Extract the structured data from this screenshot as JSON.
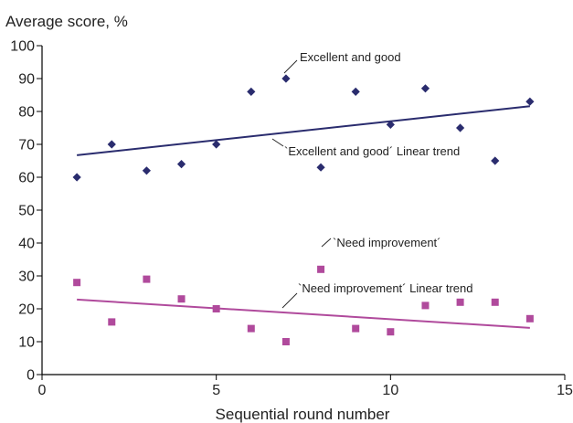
{
  "chart_data": {
    "type": "scatter",
    "title": "",
    "ylabel": "Average score, %",
    "xlabel": "Sequential round number",
    "xlim": [
      0,
      15
    ],
    "ylim": [
      0,
      100
    ],
    "x_ticks": [
      0,
      5,
      10,
      15
    ],
    "y_ticks": [
      0,
      10,
      20,
      30,
      40,
      50,
      60,
      70,
      80,
      90,
      100
    ],
    "grid": false,
    "series": [
      {
        "name": "Excellent and good",
        "marker": "diamond",
        "color": "#2a2c6e",
        "x": [
          1,
          2,
          3,
          4,
          5,
          6,
          7,
          8,
          9,
          10,
          11,
          12,
          13,
          14
        ],
        "y": [
          60,
          70,
          62,
          64,
          70,
          86,
          90,
          63,
          86,
          76,
          87,
          75,
          65,
          83
        ]
      },
      {
        "name": "`Need improvement´",
        "marker": "square",
        "color": "#b04a9c",
        "x": [
          1,
          2,
          3,
          4,
          5,
          6,
          7,
          8,
          9,
          10,
          11,
          12,
          13,
          14
        ],
        "y": [
          28,
          16,
          29,
          23,
          20,
          14,
          10,
          32,
          14,
          13,
          21,
          22,
          22,
          17
        ]
      }
    ],
    "trendlines": [
      {
        "name": "`Excellent and good´ Linear trend",
        "color": "#2a2c6e",
        "x": [
          1,
          14
        ],
        "y": [
          66.7,
          81.6
        ]
      },
      {
        "name": "`Need improvement´ Linear trend",
        "color": "#b04a9c",
        "x": [
          1,
          14
        ],
        "y": [
          22.8,
          14.2
        ]
      }
    ]
  }
}
